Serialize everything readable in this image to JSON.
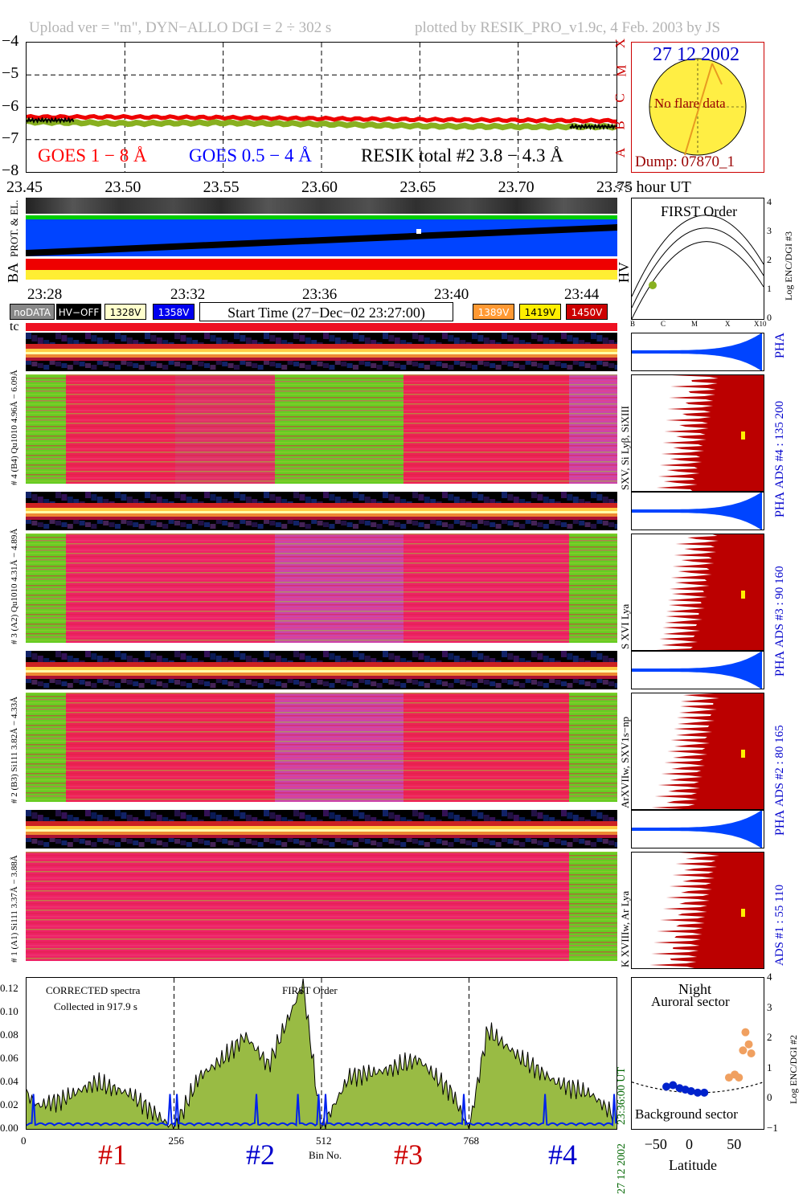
{
  "header": {
    "upload": "Upload ver = \"m\", DYN−ALLO DGI =   2 ÷ 302 s",
    "plotted": "plotted by RESIK_PRO_v1.9c, 4 Feb. 2003 by JS"
  },
  "goes": {
    "ylim": [
      -8,
      -4
    ],
    "yticks": [
      "−4",
      "−5",
      "−6",
      "−7",
      "−8"
    ],
    "xticks": [
      "23.45",
      "23.50",
      "23.55",
      "23.60",
      "23.65",
      "23.70",
      "23.75"
    ],
    "xunit": "<< hour UT",
    "legend_goes18": "GOES 1 − 8 Å",
    "legend_goes054": "GOES 0.5 − 4 Å",
    "legend_resik": "RESIK total #2  3.8 − 4.3 Å",
    "classes": [
      "X",
      "M",
      "C",
      "B",
      "A"
    ],
    "colors": {
      "goes18": "#ff0000",
      "goes054": "#0000ff",
      "resik": "#88b020"
    }
  },
  "sun": {
    "date": "27 12 2002",
    "flare": "No flare data",
    "dump": "Dump: 07870_1"
  },
  "status_bar": {
    "left_labels": [
      "PROT. & EL.",
      "BA"
    ],
    "right_label": "HV"
  },
  "time_axis": {
    "ticks": [
      "23:28",
      "23:32",
      "23:36",
      "23:40",
      "23:44"
    ]
  },
  "legend_buttons": {
    "nodata": "noDATA",
    "hvoff": "HV−OFF",
    "v1328": "1328V",
    "v1358": "1358V",
    "start": "Start Time (27−Dec−02 23:27:00)",
    "v1389": "1389V",
    "v1419": "1419V",
    "v1450": "1450V"
  },
  "hv_plot": {
    "title": "FIRST Order",
    "ylabel": "Log ENC/DGI #3",
    "yticks": [
      "4",
      "3",
      "2",
      "1",
      "0"
    ],
    "xticks": [
      "B",
      "C",
      "M",
      "X",
      "X10"
    ]
  },
  "tc_label": "tc",
  "channels": [
    {
      "id": "4",
      "pha_label": "# 4 (B4) Qu1010 4.96Å − 6.09Å",
      "line": "SXV, Si Lyβ, SiXIII",
      "ads": "ADS #4 :    135 200"
    },
    {
      "id": "3",
      "pha_label": "# 3 (A2) Qu1010  4.31Å − 4.89Å",
      "line": "S XVI Lya",
      "ads": "ADS #3 :    90 160"
    },
    {
      "id": "2",
      "pha_label": "# 2 (B3) Si111  3.82Å − 4.33Å",
      "line": "ArXVIIw, SXV1s−np",
      "ads": "ADS #2 :    80 165"
    },
    {
      "id": "1",
      "pha_label": "# 1 (A1) Si111  3.37Å − 3.88Å",
      "line": "K XVIIIw, Ar Lya",
      "ads": "ADS #1 :    55 110"
    }
  ],
  "pha_label": "PHA",
  "spectrum": {
    "title": "CORRECTED spectra",
    "collected": "Collected in   917.9 s",
    "order": "FIRST Order",
    "yticks": [
      "0.12",
      "0.10",
      "0.08",
      "0.06",
      "0.04",
      "0.02",
      "0.00"
    ],
    "xticks": [
      "0",
      "256",
      "512",
      "768"
    ],
    "xlabel": "Bin No.",
    "time": "23:36:00 UT",
    "date": "27 12 2002",
    "channel_labels": [
      "#1",
      "#2",
      "#3",
      "#4"
    ],
    "channel_colors": [
      "#cc0000",
      "#0000cc",
      "#cc0000",
      "#0000cc"
    ]
  },
  "latitude": {
    "night": "Night",
    "auroral": "Auroral sector",
    "background": "Background sector",
    "xlabel": "Latitude",
    "xticks": [
      "−50",
      "0",
      "50"
    ],
    "yticks": [
      "4",
      "3",
      "2",
      "1",
      "0",
      "−1"
    ],
    "ylabel": "Log ENC/DGI #2"
  },
  "chart_data": [
    {
      "type": "line",
      "title": "",
      "ylabel": "",
      "xlabel": "<< hour UT",
      "xlim": [
        23.45,
        23.75
      ],
      "ylim": [
        -8,
        -4
      ],
      "series": [
        {
          "name": "GOES 1 − 8 Å",
          "x": [
            23.45,
            23.5,
            23.55,
            23.6,
            23.65,
            23.7,
            23.75
          ],
          "values": [
            -6.3,
            -6.3,
            -6.32,
            -6.35,
            -6.38,
            -6.4,
            -6.42
          ]
        },
        {
          "name": "RESIK total #2  3.8 − 4.3 Å",
          "x": [
            23.45,
            23.5,
            23.55,
            23.6,
            23.65,
            23.7,
            23.75
          ],
          "values": [
            -6.45,
            -6.5,
            -6.48,
            -6.52,
            -6.58,
            -6.6,
            -6.6
          ]
        }
      ]
    },
    {
      "type": "line",
      "title": "CORRECTED spectra",
      "xlabel": "Bin No.",
      "ylabel": "",
      "xlim": [
        0,
        1024
      ],
      "ylim": [
        0,
        0.13
      ],
      "series": [
        {
          "name": "",
          "x": [
            0,
            20,
            60,
            120,
            180,
            256,
            300,
            340,
            380,
            420,
            480,
            512,
            560,
            620,
            680,
            740,
            768,
            800,
            860,
            920,
            980,
            1024
          ],
          "values": [
            0.03,
            0.02,
            0.025,
            0.04,
            0.03,
            0.0,
            0.045,
            0.06,
            0.08,
            0.055,
            0.125,
            0.0,
            0.045,
            0.05,
            0.06,
            0.03,
            0.0,
            0.085,
            0.06,
            0.04,
            0.03,
            0.01
          ]
        }
      ]
    },
    {
      "type": "scatter",
      "xlabel": "Latitude",
      "ylabel": "Log ENC/DGI #2",
      "xlim": [
        -80,
        80
      ],
      "ylim": [
        -1,
        4
      ],
      "series": [
        {
          "name": "Background sector",
          "x": [
            -38,
            -30,
            -22,
            -15,
            -8,
            0,
            8
          ],
          "values": [
            0.4,
            0.45,
            0.35,
            0.3,
            0.25,
            0.2,
            0.2
          ]
        },
        {
          "name": "Auroral sector",
          "x": [
            38,
            45,
            50,
            55,
            58,
            62,
            65
          ],
          "values": [
            0.7,
            0.8,
            0.7,
            1.6,
            2.2,
            1.8,
            1.5
          ]
        }
      ]
    }
  ]
}
